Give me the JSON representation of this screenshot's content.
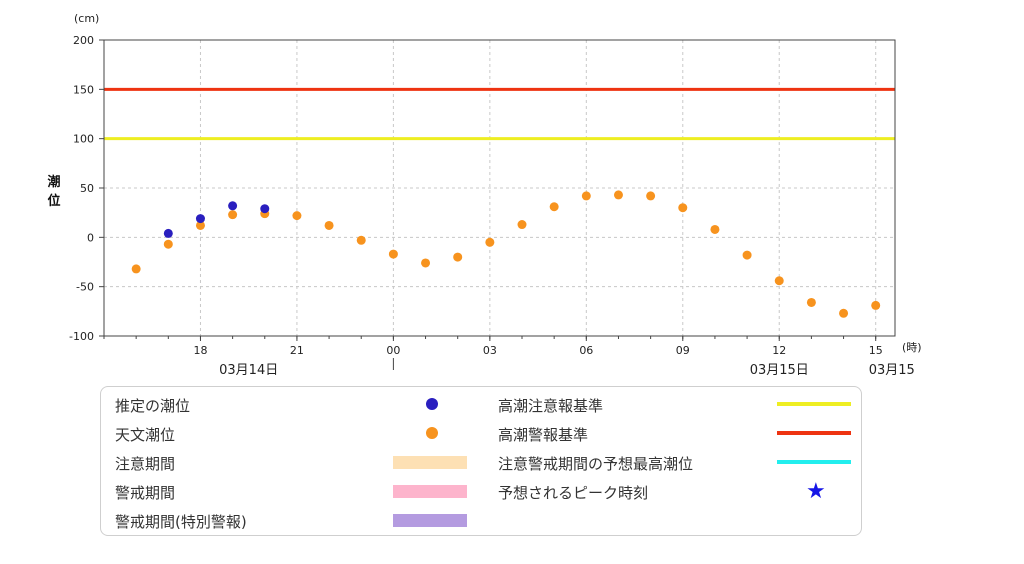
{
  "chart_data": {
    "type": "scatter",
    "y_unit": "(cm)",
    "x_unit": "(時)",
    "ylabel": "潮位",
    "ylim": [
      -100,
      200
    ],
    "y_ticks": [
      "-100",
      "-50",
      "0",
      "50",
      "100",
      "150",
      "200"
    ],
    "x_range_hours": [
      0,
      24.6
    ],
    "x_ticks": [
      {
        "hour": 3,
        "label": "18"
      },
      {
        "hour": 6,
        "label": "21"
      },
      {
        "hour": 9,
        "label": "00"
      },
      {
        "hour": 12,
        "label": "03"
      },
      {
        "hour": 15,
        "label": "06"
      },
      {
        "hour": 18,
        "label": "09"
      },
      {
        "hour": 21,
        "label": "12"
      },
      {
        "hour": 24,
        "label": "15"
      }
    ],
    "date_labels": [
      {
        "hour": 4.5,
        "label": "03月14日"
      },
      {
        "hour": 21,
        "label": "03月15日"
      },
      {
        "hour": 24.5,
        "label": "03月15"
      }
    ],
    "grid": true,
    "thresholds": [
      {
        "name": "高潮警報基準",
        "value": 150,
        "color": "#ee3311"
      },
      {
        "name": "高潮注意報基準",
        "value": 100,
        "color": "#eeee22"
      }
    ],
    "series": [
      {
        "name": "天文潮位",
        "color": "#f7931e",
        "points": [
          {
            "hour": 1,
            "value": -32
          },
          {
            "hour": 2,
            "value": -7
          },
          {
            "hour": 3,
            "value": 12
          },
          {
            "hour": 4,
            "value": 23
          },
          {
            "hour": 5,
            "value": 24
          },
          {
            "hour": 6,
            "value": 22
          },
          {
            "hour": 7,
            "value": 12
          },
          {
            "hour": 8,
            "value": -3
          },
          {
            "hour": 9,
            "value": -17
          },
          {
            "hour": 10,
            "value": -26
          },
          {
            "hour": 11,
            "value": -20
          },
          {
            "hour": 12,
            "value": -5
          },
          {
            "hour": 13,
            "value": 13
          },
          {
            "hour": 14,
            "value": 31
          },
          {
            "hour": 15,
            "value": 42
          },
          {
            "hour": 16,
            "value": 43
          },
          {
            "hour": 17,
            "value": 42
          },
          {
            "hour": 18,
            "value": 30
          },
          {
            "hour": 19,
            "value": 8
          },
          {
            "hour": 20,
            "value": -18
          },
          {
            "hour": 21,
            "value": -44
          },
          {
            "hour": 22,
            "value": -66
          },
          {
            "hour": 23,
            "value": -77
          },
          {
            "hour": 24,
            "value": -69
          }
        ]
      },
      {
        "name": "推定の潮位",
        "color": "#2a1fbf",
        "points": [
          {
            "hour": 2,
            "value": 4
          },
          {
            "hour": 3,
            "value": 19
          },
          {
            "hour": 4,
            "value": 32
          },
          {
            "hour": 5,
            "value": 29
          }
        ]
      }
    ]
  },
  "legend": {
    "estimated_tide": {
      "label": "推定の潮位",
      "color": "#2a1fbf"
    },
    "astronomical_tide": {
      "label": "天文潮位",
      "color": "#f7931e"
    },
    "advisory_period": {
      "label": "注意期間",
      "color": "#fde0b4"
    },
    "warning_period": {
      "label": "警戒期間",
      "color": "#fdb4cc"
    },
    "special_warning_period": {
      "label": "警戒期間(特別警報)",
      "color": "#b49be0"
    },
    "advisory_standard": {
      "label": "高潮注意報基準",
      "color": "#eeee22"
    },
    "warning_standard": {
      "label": "高潮警報基準",
      "color": "#ee3311"
    },
    "max_tide_forecast": {
      "label": "注意警戒期間の予想最高潮位",
      "color": "#22eeee"
    },
    "peak_time": {
      "label": "予想されるピーク時刻",
      "symbol": "★",
      "color": "#1515e6"
    }
  }
}
